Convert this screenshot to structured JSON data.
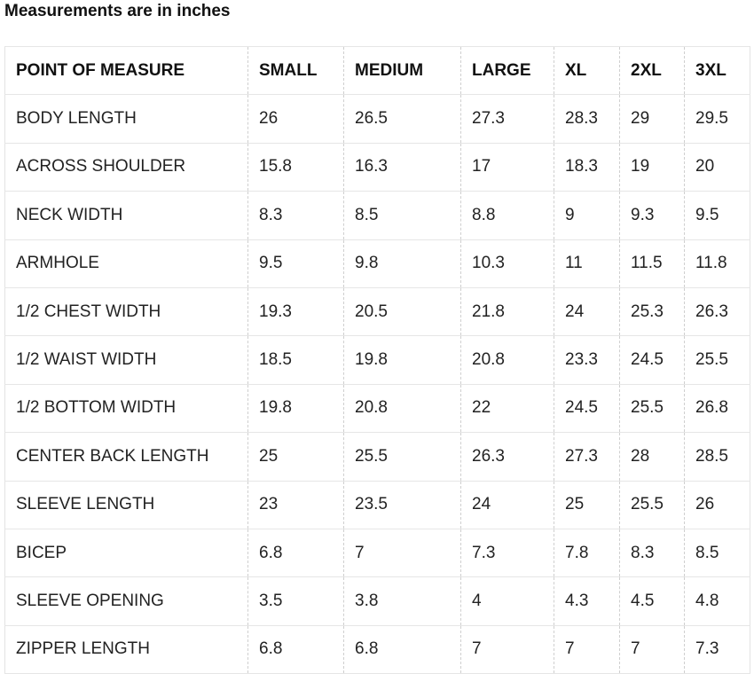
{
  "title": "Measurements are in inches",
  "table": {
    "header": [
      "POINT OF MEASURE",
      "SMALL",
      "MEDIUM",
      "LARGE",
      "XL",
      "2XL",
      "3XL"
    ],
    "rows": [
      [
        "BODY LENGTH",
        "26",
        "26.5",
        "27.3",
        "28.3",
        "29",
        "29.5"
      ],
      [
        "ACROSS SHOULDER",
        "15.8",
        "16.3",
        "17",
        "18.3",
        "19",
        "20"
      ],
      [
        "NECK WIDTH",
        "8.3",
        "8.5",
        "8.8",
        "9",
        "9.3",
        "9.5"
      ],
      [
        "ARMHOLE",
        "9.5",
        "9.8",
        "10.3",
        "11",
        "11.5",
        "11.8"
      ],
      [
        "1/2 CHEST WIDTH",
        "19.3",
        "20.5",
        "21.8",
        "24",
        "25.3",
        "26.3"
      ],
      [
        "1/2 WAIST WIDTH",
        "18.5",
        "19.8",
        "20.8",
        "23.3",
        "24.5",
        "25.5"
      ],
      [
        "1/2 BOTTOM WIDTH",
        "19.8",
        "20.8",
        "22",
        "24.5",
        "25.5",
        "26.8"
      ],
      [
        "CENTER BACK LENGTH",
        "25",
        "25.5",
        "26.3",
        "27.3",
        "28",
        "28.5"
      ],
      [
        "SLEEVE LENGTH",
        "23",
        "23.5",
        "24",
        "25",
        "25.5",
        "26"
      ],
      [
        "BICEP",
        "6.8",
        "7",
        "7.3",
        "7.8",
        "8.3",
        "8.5"
      ],
      [
        "SLEEVE OPENING",
        "3.5",
        "3.8",
        "4",
        "4.3",
        "4.5",
        "4.8"
      ],
      [
        "ZIPPER LENGTH",
        "6.8",
        "6.8",
        "7",
        "7",
        "7",
        "7.3"
      ]
    ]
  }
}
